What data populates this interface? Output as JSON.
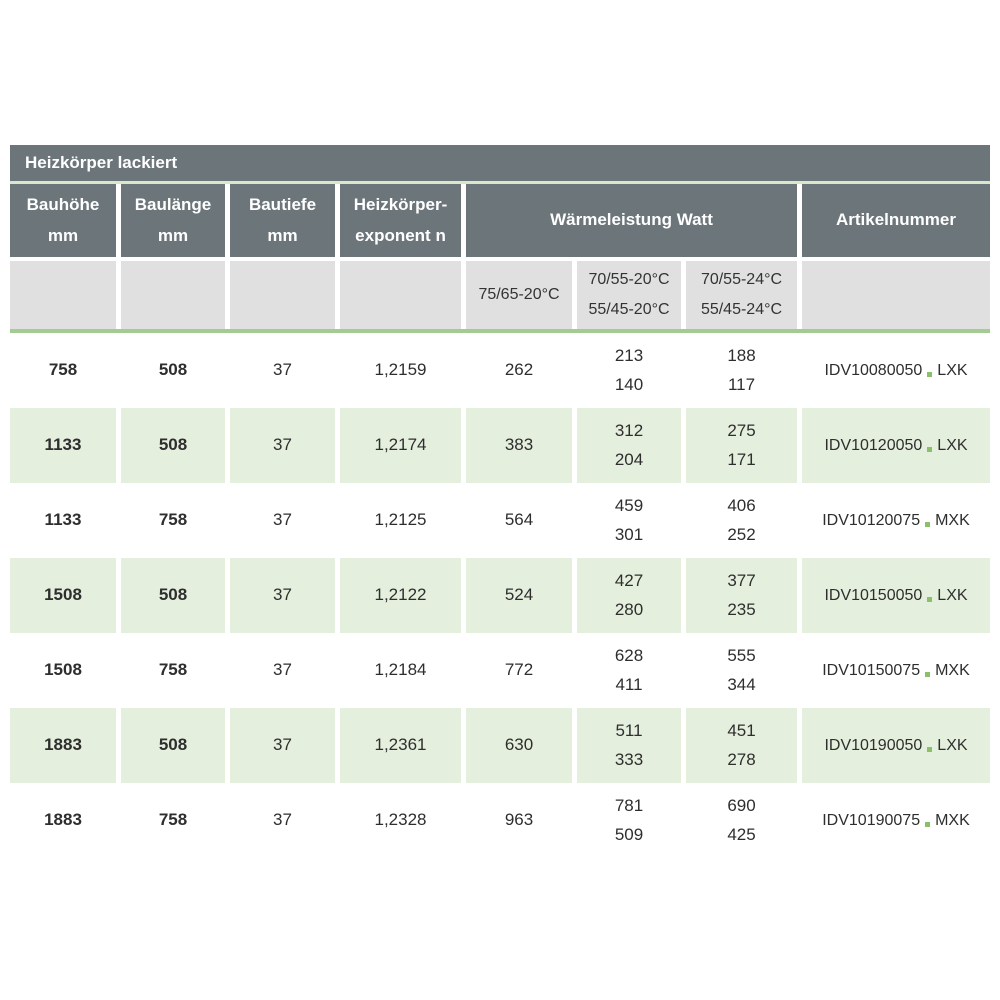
{
  "title": "Heizkörper lackiert",
  "columns": {
    "bauhoehe": "Bauhöhe\nmm",
    "baulaenge": "Baulänge\nmm",
    "bautiefe": "Bautiefe\nmm",
    "exponent": "Heizkörper-\nexponent n",
    "waermeleistung": "Wärmeleistung Watt",
    "artikelnummer": "Artikelnummer"
  },
  "subcolumns": {
    "c1": "75/65-20°C",
    "c2": "70/55-20°C\n55/45-20°C",
    "c3": "70/55-24°C\n55/45-24°C"
  },
  "rows": [
    {
      "bauhoehe": "758",
      "baulaenge": "508",
      "bautiefe": "37",
      "exponent": "1,2159",
      "watt_75_65": "262",
      "watt_70_55_20": "213\n140",
      "watt_70_55_24": "188\n117",
      "artikel_code": "IDV10080050",
      "artikel_suffix": "LXK"
    },
    {
      "bauhoehe": "1133",
      "baulaenge": "508",
      "bautiefe": "37",
      "exponent": "1,2174",
      "watt_75_65": "383",
      "watt_70_55_20": "312\n204",
      "watt_70_55_24": "275\n171",
      "artikel_code": "IDV10120050",
      "artikel_suffix": "LXK"
    },
    {
      "bauhoehe": "1133",
      "baulaenge": "758",
      "bautiefe": "37",
      "exponent": "1,2125",
      "watt_75_65": "564",
      "watt_70_55_20": "459\n301",
      "watt_70_55_24": "406\n252",
      "artikel_code": "IDV10120075",
      "artikel_suffix": "MXK"
    },
    {
      "bauhoehe": "1508",
      "baulaenge": "508",
      "bautiefe": "37",
      "exponent": "1,2122",
      "watt_75_65": "524",
      "watt_70_55_20": "427\n280",
      "watt_70_55_24": "377\n235",
      "artikel_code": "IDV10150050",
      "artikel_suffix": "LXK"
    },
    {
      "bauhoehe": "1508",
      "baulaenge": "758",
      "bautiefe": "37",
      "exponent": "1,2184",
      "watt_75_65": "772",
      "watt_70_55_20": "628\n411",
      "watt_70_55_24": "555\n344",
      "artikel_code": "IDV10150075",
      "artikel_suffix": "MXK"
    },
    {
      "bauhoehe": "1883",
      "baulaenge": "508",
      "bautiefe": "37",
      "exponent": "1,2361",
      "watt_75_65": "630",
      "watt_70_55_20": "511\n333",
      "watt_70_55_24": "451\n278",
      "artikel_code": "IDV10190050",
      "artikel_suffix": "LXK"
    },
    {
      "bauhoehe": "1883",
      "baulaenge": "758",
      "bautiefe": "37",
      "exponent": "1,2328",
      "watt_75_65": "963",
      "watt_70_55_20": "781\n509",
      "watt_70_55_24": "690\n425",
      "artikel_code": "IDV10190075",
      "artikel_suffix": "MXK"
    }
  ],
  "colors": {
    "header_bg": "#6C757A",
    "header_text": "#FFFFFF",
    "subheader_bg": "#E0E0E0",
    "row_alt_bg": "#E5EFDE",
    "accent_line_green": "#A3CC92",
    "divider_light_green": "#D8E7CE",
    "artikel_dot_green": "#8CBF6A",
    "body_text": "#2E2E2E"
  }
}
